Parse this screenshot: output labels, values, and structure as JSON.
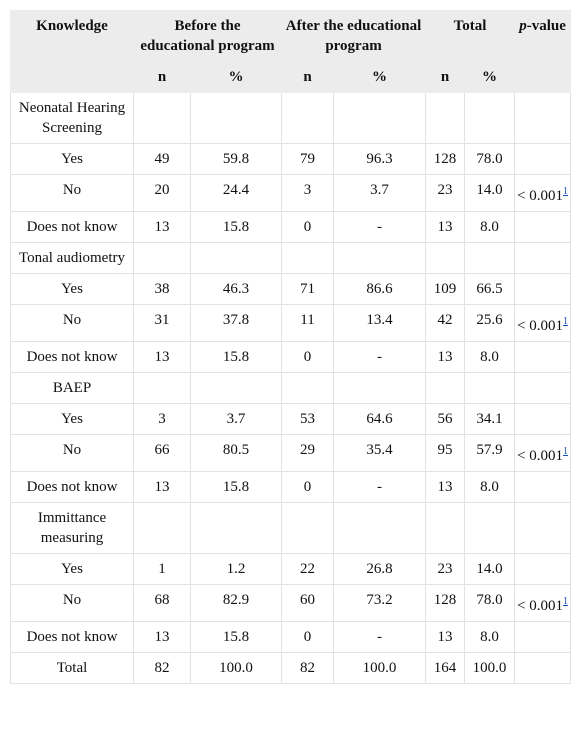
{
  "table": {
    "header": {
      "knowledge": "Knowledge",
      "before": "Before the educational program",
      "after": "After the educational program",
      "total": "Total",
      "p_italic": "p",
      "p_rest": "-value",
      "sub": [
        "n",
        "%",
        "n",
        "%",
        "n",
        "%"
      ]
    },
    "rows": [
      {
        "label": "Neonatal Hearing Screening"
      },
      {
        "label": "Yes",
        "cells": [
          "49",
          "59.8",
          "79",
          "96.3",
          "128",
          "78.0"
        ]
      },
      {
        "label": "No",
        "cells": [
          "20",
          "24.4",
          "3",
          "3.7",
          "23",
          "14.0"
        ],
        "p": {
          "text": "< 0.001",
          "note": "1"
        }
      },
      {
        "label": "Does not know",
        "cells": [
          "13",
          "15.8",
          "0",
          "-",
          "13",
          "8.0"
        ]
      },
      {
        "label": "Tonal audiometry"
      },
      {
        "label": "Yes",
        "cells": [
          "38",
          "46.3",
          "71",
          "86.6",
          "109",
          "66.5"
        ]
      },
      {
        "label": "No",
        "cells": [
          "31",
          "37.8",
          "11",
          "13.4",
          "42",
          "25.6"
        ],
        "p": {
          "text": "< 0.001",
          "note": "1"
        }
      },
      {
        "label": "Does not know",
        "cells": [
          "13",
          "15.8",
          "0",
          "-",
          "13",
          "8.0"
        ]
      },
      {
        "label": "BAEP"
      },
      {
        "label": "Yes",
        "cells": [
          "3",
          "3.7",
          "53",
          "64.6",
          "56",
          "34.1"
        ]
      },
      {
        "label": "No",
        "cells": [
          "66",
          "80.5",
          "29",
          "35.4",
          "95",
          "57.9"
        ],
        "p": {
          "text": "< 0.001",
          "note": "1"
        }
      },
      {
        "label": "Does not know",
        "cells": [
          "13",
          "15.8",
          "0",
          "-",
          "13",
          "8.0"
        ]
      },
      {
        "label": "Immittance measuring"
      },
      {
        "label": "Yes",
        "cells": [
          "1",
          "1.2",
          "22",
          "26.8",
          "23",
          "14.0"
        ]
      },
      {
        "label": "No",
        "cells": [
          "68",
          "82.9",
          "60",
          "73.2",
          "128",
          "78.0"
        ],
        "p": {
          "text": "< 0.001",
          "note": "1"
        }
      },
      {
        "label": "Does not know",
        "cells": [
          "13",
          "15.8",
          "0",
          "-",
          "13",
          "8.0"
        ]
      },
      {
        "label": "Total",
        "cells": [
          "82",
          "100.0",
          "82",
          "100.0",
          "164",
          "100.0"
        ]
      }
    ]
  }
}
